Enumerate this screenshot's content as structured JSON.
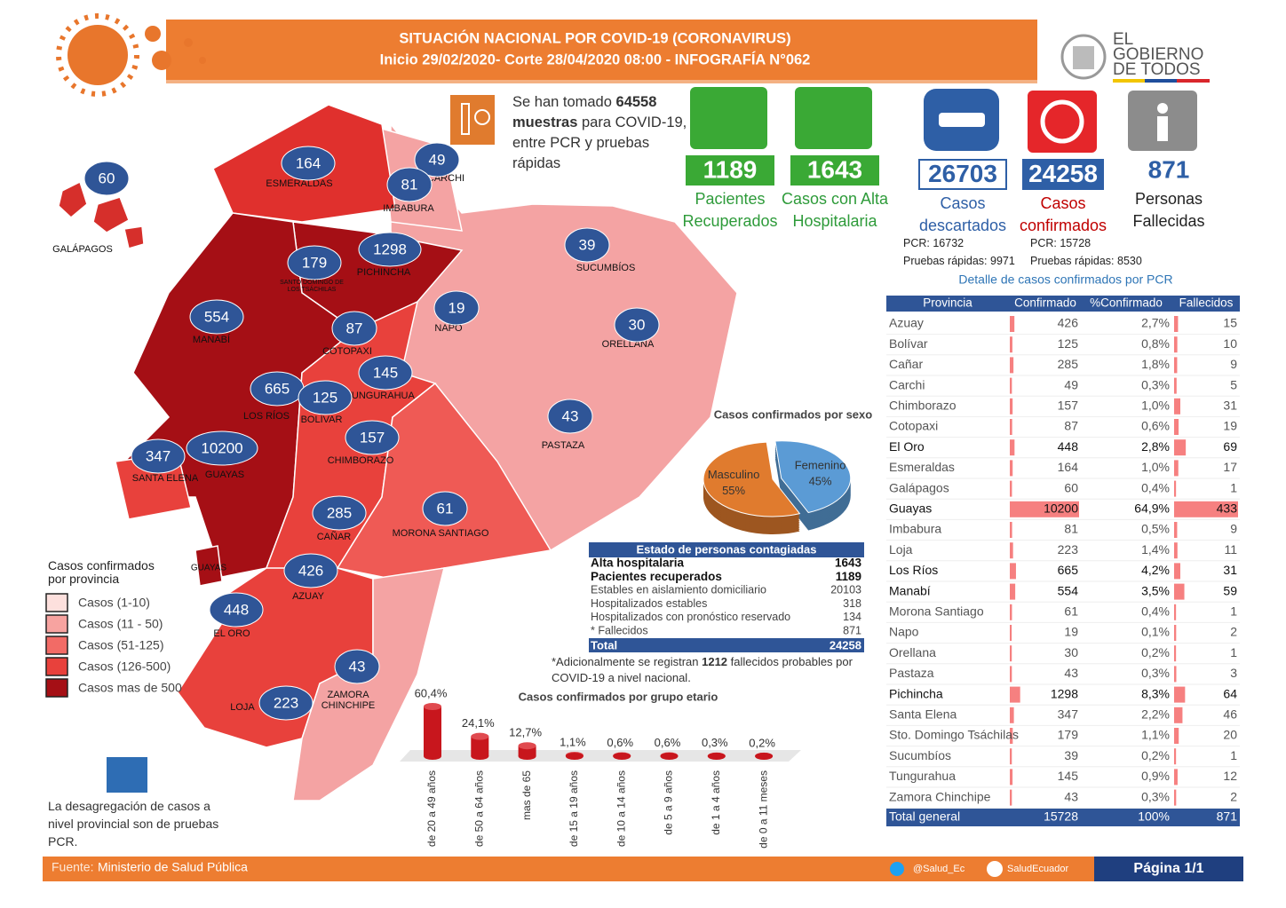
{
  "header": {
    "title": "SITUACIÓN NACIONAL POR  COVID-19 (CORONAVIRUS)",
    "subtitle": "Inicio 29/02/2020- Corte 28/04/2020 08:00  - INFOGRAFÍA N°062"
  },
  "logo": {
    "line1": "EL",
    "line2": "GOBIERNO",
    "line3": "DE TODOS"
  },
  "samples": {
    "prefix": "Se han tomado",
    "value": 64558,
    "bold": "muestras",
    "suffix": "para COVID-19, entre PCR y pruebas rápidas"
  },
  "stats": [
    {
      "value": 1189,
      "label": "Pacientes Recuperados"
    },
    {
      "value": 1643,
      "label": "Casos con Alta Hospitalaria"
    },
    {
      "value": 26703,
      "label": "Casos descartados"
    },
    {
      "value": 24258,
      "label": "Casos confirmados"
    },
    {
      "value": 871,
      "label": "Personas Fallecidas"
    }
  ],
  "details": {
    "descartados": {
      "pcr_label": "PCR:",
      "pcr": 16732,
      "rapid_label": "Pruebas rápidas:",
      "rapid": 9971
    },
    "confirmados": {
      "pcr_label": "PCR:",
      "pcr": 15728,
      "rapid_label": "Pruebas rápidas:",
      "rapid": 8530
    }
  },
  "map": {
    "provinces": [
      {
        "name": "GALÁPAGOS",
        "cases": 60
      },
      {
        "name": "ESMERALDAS",
        "cases": 164
      },
      {
        "name": "CARCHI",
        "cases": 49
      },
      {
        "name": "IMBABURA",
        "cases": 81
      },
      {
        "name": "PICHINCHA",
        "cases": 1298
      },
      {
        "name": "SANTO DOMINGO DE LOS TSÁCHILAS",
        "cases": 179
      },
      {
        "name": "SUCUMBÍOS",
        "cases": 39
      },
      {
        "name": "MANABÍ",
        "cases": 554
      },
      {
        "name": "COTOPAXI",
        "cases": 87
      },
      {
        "name": "NAPO",
        "cases": 19
      },
      {
        "name": "ORELLANA",
        "cases": 30
      },
      {
        "name": "TUNGURAHUA",
        "cases": 145
      },
      {
        "name": "LOS RÍOS",
        "cases": 665
      },
      {
        "name": "BOLÍVAR",
        "cases": 125
      },
      {
        "name": "PASTAZA",
        "cases": 43
      },
      {
        "name": "SANTA ELENA",
        "cases": 347
      },
      {
        "name": "GUAYAS",
        "cases": 10200
      },
      {
        "name": "CHIMBORAZO",
        "cases": 157
      },
      {
        "name": "CAÑAR",
        "cases": 285
      },
      {
        "name": "MORONA SANTIAGO",
        "cases": 61
      },
      {
        "name": "AZUAY",
        "cases": 426
      },
      {
        "name": "EL ORO",
        "cases": 448
      },
      {
        "name": "ZAMORA CHINCHIPE",
        "cases": 43
      },
      {
        "name": "LOJA",
        "cases": 223
      }
    ],
    "extra_label": "GUAYAS"
  },
  "legend": {
    "title": "Casos confirmados por provincia",
    "items": [
      {
        "label": "Casos (1-10)",
        "color": "#fde0dd"
      },
      {
        "label": "Casos (11 - 50)",
        "color": "#f7a3a0"
      },
      {
        "label": "Casos (51-125)",
        "color": "#f26b66"
      },
      {
        "label": "Casos (126-500)",
        "color": "#e8413c"
      },
      {
        "label": "Casos mas de 500",
        "color": "#a50f15"
      }
    ]
  },
  "note": "La desagregación de casos a nivel provincial son  de pruebas PCR.",
  "sex_chart": {
    "type": "pie",
    "title": "Casos confirmados por sexo",
    "series": [
      {
        "name": "Femenino",
        "value": 45,
        "value_label": "45%",
        "color": "#5b9bd5"
      },
      {
        "name": "Masculino",
        "value": 55,
        "value_label": "55%",
        "color": "#e07b2e"
      }
    ]
  },
  "status_table": {
    "title": "Estado de personas contagiadas",
    "rows": [
      [
        "Alta hospitalaria",
        1643
      ],
      [
        "Pacientes recuperados",
        1189
      ],
      [
        "Estables en aislamiento domiciliario",
        20103
      ],
      [
        "Hospitalizados estables",
        318
      ],
      [
        "Hospitalizados con pronóstico reservado",
        134
      ],
      [
        "* Fallecidos",
        871
      ]
    ],
    "total": [
      "Total",
      24258
    ]
  },
  "footnote": {
    "prefix": "*Adicionalmente se registran",
    "value": 1212,
    "suffix": "fallecidos probables por COVID-19 a nivel nacional."
  },
  "age_chart": {
    "type": "bar",
    "title": "Casos confirmados por grupo etario",
    "categories": [
      "de 20 a 49 años",
      "de 50 a 64 años",
      "mas de 65",
      "de 15 a 19 años",
      "de 10 a 14 años",
      "de 5 a 9 años",
      "de 1 a 4 años",
      "de 0 a 11 meses"
    ],
    "values": [
      60.4,
      24.1,
      12.7,
      1.1,
      0.6,
      0.6,
      0.3,
      0.2
    ],
    "value_labels": [
      "60,4%",
      "24,1%",
      "12,7%",
      "1,1%",
      "0,6%",
      "0,6%",
      "0,3%",
      "0,2%"
    ],
    "color": "#c8161d"
  },
  "pcr_table": {
    "title": "Detalle de casos confirmados por PCR",
    "columns": [
      "Provincia",
      "Confirmado",
      "%Confirmado",
      "Fallecidos"
    ],
    "rows": [
      [
        "Azuay",
        426,
        "2,7%",
        15
      ],
      [
        "Bolívar",
        125,
        "0,8%",
        10
      ],
      [
        "Cañar",
        285,
        "1,8%",
        9
      ],
      [
        "Carchi",
        49,
        "0,3%",
        5
      ],
      [
        "Chimborazo",
        157,
        "1,0%",
        31
      ],
      [
        "Cotopaxi",
        87,
        "0,6%",
        19
      ],
      [
        "El Oro",
        448,
        "2,8%",
        69
      ],
      [
        "Esmeraldas",
        164,
        "1,0%",
        17
      ],
      [
        "Galápagos",
        60,
        "0,4%",
        1
      ],
      [
        "Guayas",
        10200,
        "64,9%",
        433
      ],
      [
        "Imbabura",
        81,
        "0,5%",
        9
      ],
      [
        "Loja",
        223,
        "1,4%",
        11
      ],
      [
        "Los Ríos",
        665,
        "4,2%",
        31
      ],
      [
        "Manabí",
        554,
        "3,5%",
        59
      ],
      [
        "Morona Santiago",
        61,
        "0,4%",
        1
      ],
      [
        "Napo",
        19,
        "0,1%",
        2
      ],
      [
        "Orellana",
        30,
        "0,2%",
        1
      ],
      [
        "Pastaza",
        43,
        "0,3%",
        3
      ],
      [
        "Pichincha",
        1298,
        "8,3%",
        64
      ],
      [
        "Santa Elena",
        347,
        "2,2%",
        46
      ],
      [
        "Sto. Domingo Tsáchilas",
        179,
        "1,1%",
        20
      ],
      [
        "Sucumbíos",
        39,
        "0,2%",
        1
      ],
      [
        "Tungurahua",
        145,
        "0,9%",
        12
      ],
      [
        "Zamora Chinchipe",
        43,
        "0,3%",
        2
      ]
    ],
    "total": [
      "Total general",
      15728,
      "100%",
      871
    ]
  },
  "footer": {
    "source_label": "Fuente:",
    "source": "Ministerio de Salud Pública",
    "twitter": "@Salud_Ec",
    "facebook": "SaludEcuador",
    "page": "Página 1/1"
  }
}
